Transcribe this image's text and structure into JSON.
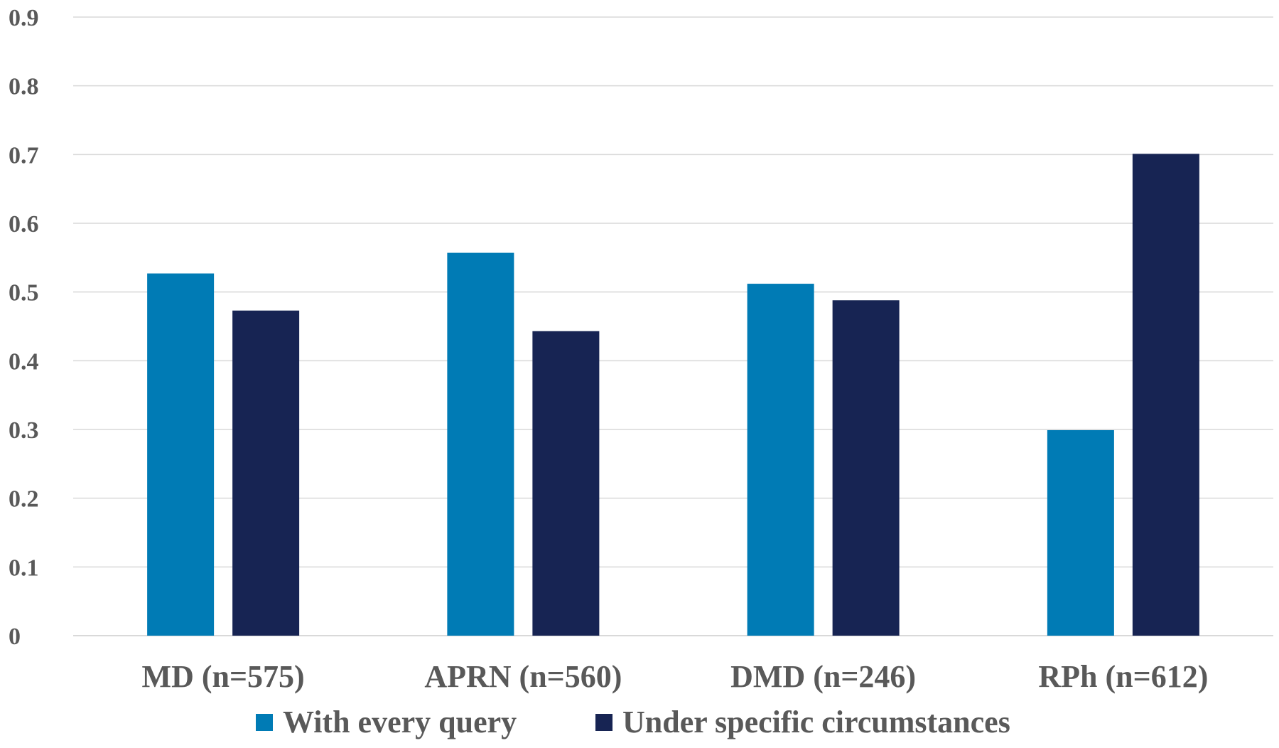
{
  "chart_data": {
    "type": "bar",
    "title": "",
    "xlabel": "",
    "ylabel": "",
    "categories": [
      "MD (n=575)",
      "APRN (n=560)",
      "DMD (n=246)",
      "RPh (n=612)"
    ],
    "series": [
      {
        "name": "With every query",
        "color": "#007bb5",
        "values": [
          0.527,
          0.557,
          0.512,
          0.299
        ]
      },
      {
        "name": "Under specific circumstances",
        "color": "#172453",
        "values": [
          0.473,
          0.443,
          0.488,
          0.701
        ]
      }
    ],
    "ylim": [
      0,
      0.9
    ],
    "yticks": [
      "0",
      "0.1",
      "0.2",
      "0.3",
      "0.4",
      "0.5",
      "0.6",
      "0.7",
      "0.8",
      "0.9"
    ],
    "grid": true,
    "legend_position": "bottom"
  }
}
